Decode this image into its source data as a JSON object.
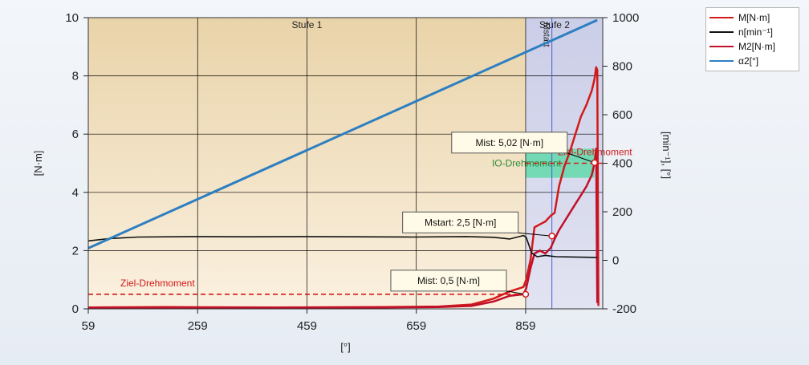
{
  "legend": [
    {
      "label": "M[N·m]",
      "color": "#d11a1a"
    },
    {
      "label": "n[min⁻¹]",
      "color": "#111111"
    },
    {
      "label": "M2[N·m]",
      "color": "#c0102a"
    },
    {
      "label": "α2[°]",
      "color": "#2d7fc1"
    }
  ],
  "chart_data": {
    "type": "line",
    "xlabel": "[°]",
    "ylabel_left": "[N·m]",
    "ylabel_right": "[min⁻¹], [°]",
    "xlim": [
      59,
      1000
    ],
    "ylim_left": [
      0,
      10
    ],
    "ylim_right": [
      -200,
      1000
    ],
    "xticks": [
      "59",
      "259",
      "459",
      "659",
      "859"
    ],
    "yticks_left": [
      "0",
      "2",
      "4",
      "6",
      "8",
      "10"
    ],
    "yticks_right": [
      "-200",
      "0",
      "200",
      "400",
      "600",
      "800",
      "1000"
    ],
    "grid": true,
    "stages": [
      {
        "label": "Stufe 1",
        "x_start": 59,
        "x_end": 859
      },
      {
        "label": "Stufe 2",
        "x_start": 859,
        "x_end": 1000
      }
    ],
    "mstart_marker": {
      "label": "Mstart",
      "x": 907
    },
    "target_line": {
      "label": "Ziel-Drehmoment",
      "y": 0.5
    },
    "target_line_2": {
      "label": "Ziel-Drehmoment",
      "y": 5.0
    },
    "io_band": {
      "label": "IO-Drehmoment",
      "x_start": 859,
      "x_end": 985,
      "y_low": 4.5,
      "y_high": 5.5
    },
    "annotations": [
      {
        "label": "Mist: 5,02 [N·m]",
        "x": 985,
        "y": 5.02
      },
      {
        "label": "Mstart: 2,5 [N·m]",
        "x": 907,
        "y": 2.5
      },
      {
        "label": "Mist: 0,5 [N·m]",
        "x": 859,
        "y": 0.5
      }
    ],
    "series": [
      {
        "name": "M[N·m]",
        "axis": "left",
        "color": "#d11a1a",
        "x": [
          59,
          200,
          400,
          600,
          700,
          760,
          800,
          830,
          855,
          860,
          868,
          875,
          885,
          895,
          905,
          912,
          920,
          930,
          940,
          950,
          960,
          970,
          980,
          985,
          988,
          990,
          992
        ],
        "y": [
          0.05,
          0.06,
          0.05,
          0.06,
          0.08,
          0.15,
          0.35,
          0.6,
          0.75,
          1.0,
          1.7,
          2.8,
          2.9,
          3.0,
          3.2,
          3.3,
          4.2,
          4.9,
          5.4,
          6.0,
          6.6,
          7.0,
          7.5,
          7.9,
          8.3,
          8.2,
          0.1
        ]
      },
      {
        "name": "M2[N·m]",
        "axis": "left",
        "color": "#c0102a",
        "x": [
          59,
          200,
          400,
          600,
          700,
          760,
          800,
          830,
          855,
          860,
          868,
          875,
          885,
          895,
          905,
          912,
          920,
          930,
          940,
          950,
          960,
          970,
          980,
          985,
          988,
          990
        ],
        "y": [
          0.03,
          0.04,
          0.04,
          0.05,
          0.06,
          0.1,
          0.25,
          0.45,
          0.5,
          0.7,
          1.4,
          1.9,
          2.0,
          1.9,
          2.1,
          2.4,
          2.7,
          3.0,
          3.3,
          3.6,
          3.9,
          4.2,
          4.6,
          5.0,
          5.5,
          0.2
        ]
      },
      {
        "name": "n[min⁻¹]",
        "axis": "right",
        "color": "#111111",
        "x": [
          59,
          100,
          150,
          250,
          350,
          450,
          550,
          650,
          750,
          800,
          830,
          855,
          860,
          870,
          880,
          895,
          915,
          960,
          990
        ],
        "y": [
          80,
          90,
          96,
          98,
          97,
          98,
          97,
          96,
          98,
          95,
          88,
          102,
          95,
          30,
          15,
          20,
          15,
          13,
          12
        ]
      },
      {
        "name": "α2[°]",
        "axis": "right",
        "color": "#2d7fc1",
        "x": [
          59,
          990
        ],
        "y": [
          50,
          990
        ]
      }
    ]
  }
}
